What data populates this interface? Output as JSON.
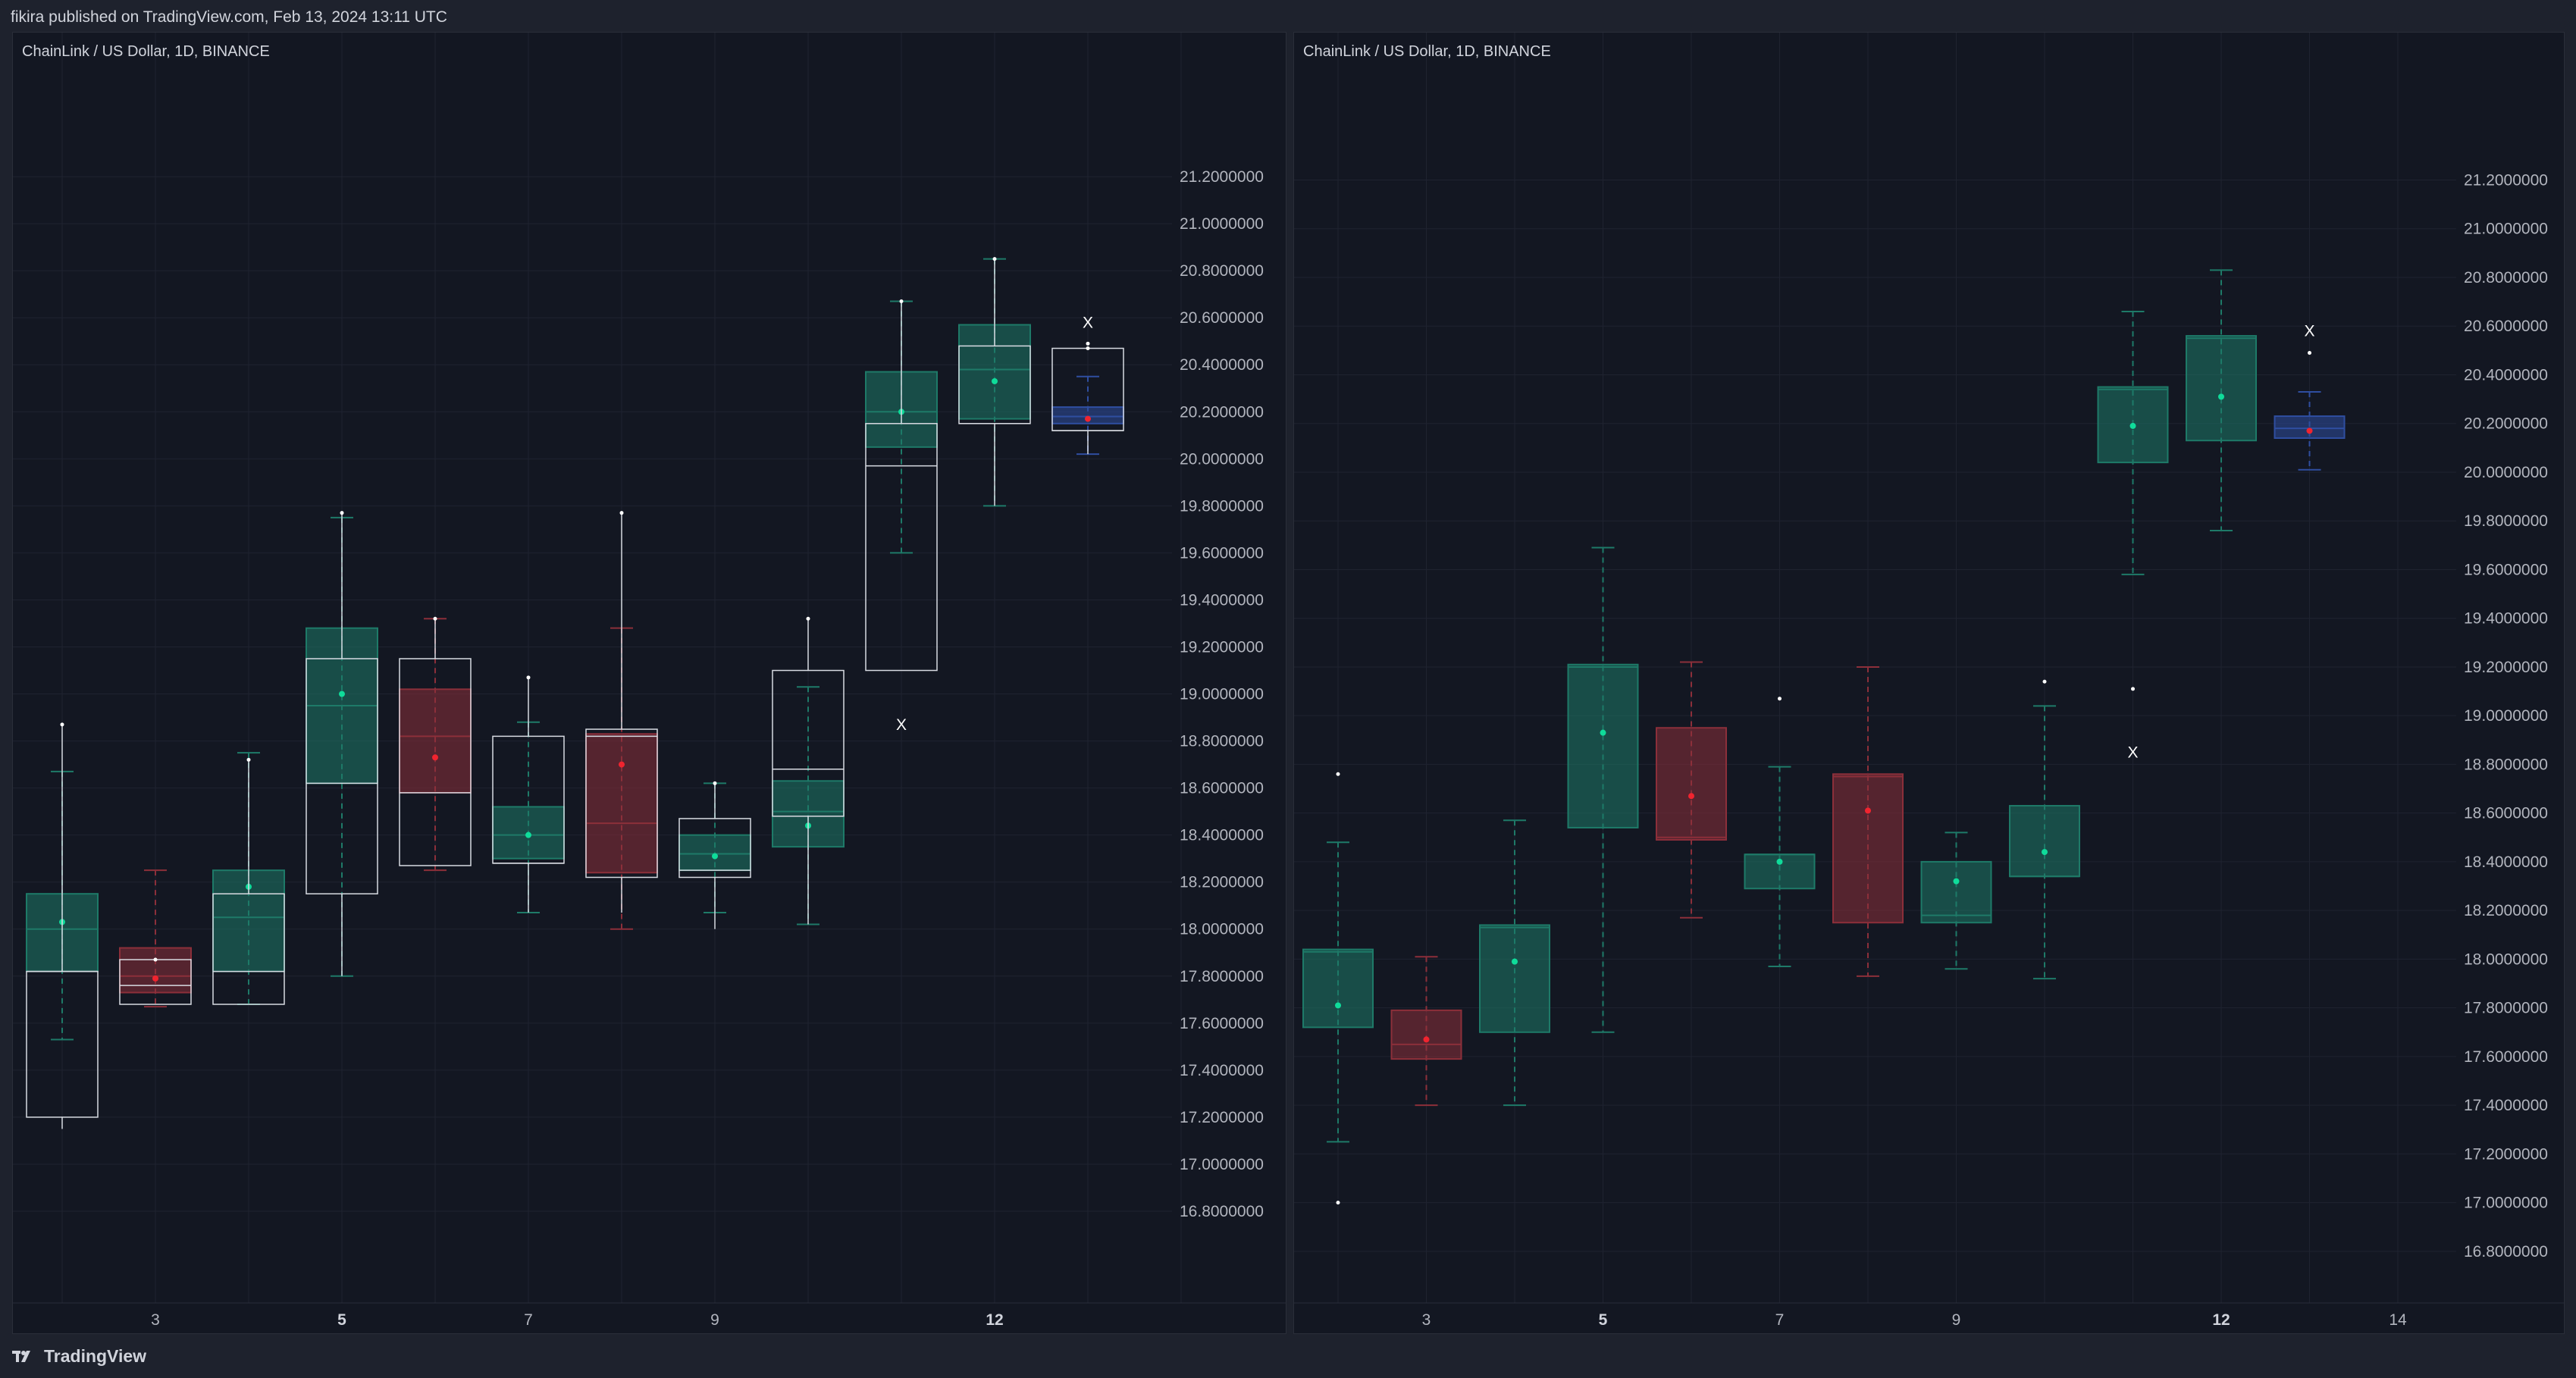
{
  "header": {
    "published": "fikira published on TradingView.com, Feb 13, 2024 13:11 UTC"
  },
  "footer": {
    "brand": "TradingView"
  },
  "colors": {
    "up": "#1e7a68",
    "up_mark": "#0fdc9a",
    "down": "#8c2f3a",
    "down_mark": "#f0242f",
    "neutral": "#2f4ea0",
    "white_box": "#d8dbe2",
    "grid": "#1f2330",
    "axis_text": "#b2b5be",
    "background": "#131722"
  },
  "panels": [
    {
      "symbol": "ChainLink / US Dollar, 1D, BINANCE"
    },
    {
      "symbol": "ChainLink / US Dollar, 1D, BINANCE"
    }
  ],
  "chart_data": [
    {
      "type": "box",
      "title": "ChainLink / US Dollar, 1D, BINANCE",
      "ylim": [
        16.7,
        21.6
      ],
      "y_ticks": [
        "21.2000000",
        "21.0000000",
        "20.8000000",
        "20.6000000",
        "20.4000000",
        "20.2000000",
        "20.0000000",
        "19.8000000",
        "19.6000000",
        "19.4000000",
        "19.2000000",
        "19.0000000",
        "18.8000000",
        "18.6000000",
        "18.4000000",
        "18.2000000",
        "18.0000000",
        "17.8000000",
        "17.6000000",
        "17.4000000",
        "17.2000000",
        "17.0000000",
        "16.8000000"
      ],
      "x_ticks": [
        "3",
        "5",
        "7",
        "9",
        "12"
      ],
      "x_tick_bold": [
        "5",
        "12"
      ],
      "candles": [
        {
          "day": 2,
          "q1": 17.82,
          "q3": 18.15,
          "med": 18.0,
          "mean": 18.03,
          "wlo": 17.53,
          "whi": 18.67,
          "color": "up"
        },
        {
          "day": 3,
          "q1": 17.73,
          "q3": 17.92,
          "med": 17.8,
          "mean": 17.79,
          "wlo": 17.67,
          "whi": 18.25,
          "color": "down"
        },
        {
          "day": 4,
          "q1": 17.82,
          "q3": 18.25,
          "med": 18.05,
          "mean": 18.18,
          "wlo": 17.68,
          "whi": 18.75,
          "color": "up"
        },
        {
          "day": 5,
          "q1": 18.62,
          "q3": 19.28,
          "med": 18.95,
          "mean": 19.0,
          "wlo": 17.8,
          "whi": 19.75,
          "color": "up"
        },
        {
          "day": 6,
          "q1": 18.58,
          "q3": 19.02,
          "med": 18.82,
          "mean": 18.73,
          "wlo": 18.25,
          "whi": 19.32,
          "color": "down"
        },
        {
          "day": 7,
          "q1": 18.3,
          "q3": 18.52,
          "med": 18.4,
          "mean": 18.4,
          "wlo": 18.07,
          "whi": 18.88,
          "color": "up"
        },
        {
          "day": 8,
          "q1": 18.24,
          "q3": 18.83,
          "med": 18.45,
          "mean": 18.7,
          "wlo": 18.0,
          "whi": 19.28,
          "color": "down"
        },
        {
          "day": 9,
          "q1": 18.25,
          "q3": 18.4,
          "med": 18.32,
          "mean": 18.31,
          "wlo": 18.07,
          "whi": 18.62,
          "color": "up"
        },
        {
          "day": 10,
          "q1": 18.35,
          "q3": 18.63,
          "med": 18.5,
          "mean": 18.44,
          "wlo": 18.02,
          "whi": 19.03,
          "color": "up"
        },
        {
          "day": 11,
          "q1": 20.05,
          "q3": 20.37,
          "med": 20.2,
          "mean": 20.2,
          "wlo": 19.6,
          "whi": 20.67,
          "color": "up"
        },
        {
          "day": 12,
          "q1": 20.17,
          "q3": 20.57,
          "med": 20.38,
          "mean": 20.33,
          "wlo": 19.8,
          "whi": 20.85,
          "color": "up"
        },
        {
          "day": 13,
          "q1": 20.15,
          "q3": 20.22,
          "med": 20.18,
          "mean": 20.17,
          "wlo": 20.02,
          "whi": 20.35,
          "color": "neutral"
        }
      ],
      "white_boxes": [
        {
          "day": 2,
          "q1": 17.2,
          "q3": 17.82,
          "med": 17.82,
          "wlo": 17.15,
          "whi": 18.87
        },
        {
          "day": 3,
          "q1": 17.68,
          "q3": 17.87,
          "med": 17.76,
          "wlo": 17.68,
          "whi": 17.87
        },
        {
          "day": 4,
          "q1": 17.68,
          "q3": 18.15,
          "med": 17.82,
          "wlo": 17.68,
          "whi": 18.72
        },
        {
          "day": 5,
          "q1": 18.15,
          "q3": 19.15,
          "med": 18.62,
          "wlo": 17.8,
          "whi": 19.77
        },
        {
          "day": 6,
          "q1": 18.27,
          "q3": 19.15,
          "med": 18.58,
          "wlo": 18.27,
          "whi": 19.32
        },
        {
          "day": 7,
          "q1": 18.28,
          "q3": 18.82,
          "med": 18.28,
          "wlo": 18.07,
          "whi": 19.07
        },
        {
          "day": 8,
          "q1": 18.22,
          "q3": 18.85,
          "med": 18.82,
          "wlo": 18.07,
          "whi": 19.77
        },
        {
          "day": 9,
          "q1": 18.22,
          "q3": 18.47,
          "med": 18.25,
          "wlo": 18.0,
          "whi": 18.62
        },
        {
          "day": 10,
          "q1": 18.48,
          "q3": 19.1,
          "med": 18.68,
          "wlo": 18.02,
          "whi": 19.32
        },
        {
          "day": 11,
          "q1": 19.1,
          "q3": 20.15,
          "med": 19.97,
          "wlo": 19.1,
          "whi": 20.67
        },
        {
          "day": 12,
          "q1": 20.15,
          "q3": 20.48,
          "med": 20.15,
          "wlo": 19.8,
          "whi": 20.85
        },
        {
          "day": 13,
          "q1": 20.12,
          "q3": 20.47,
          "med": 20.12,
          "wlo": 20.02,
          "whi": 20.47
        }
      ],
      "outliers": [
        {
          "day": 11,
          "value": 18.87,
          "mark": "X"
        },
        {
          "day": 13,
          "value": 20.58,
          "mark": "X"
        },
        {
          "day": 13,
          "value": 20.49,
          "mark": "dot"
        }
      ]
    },
    {
      "type": "box",
      "title": "ChainLink / US Dollar, 1D, BINANCE",
      "ylim": [
        16.7,
        21.6
      ],
      "y_ticks": [
        "21.2000000",
        "21.0000000",
        "20.8000000",
        "20.6000000",
        "20.4000000",
        "20.2000000",
        "20.0000000",
        "19.8000000",
        "19.6000000",
        "19.4000000",
        "19.2000000",
        "19.0000000",
        "18.8000000",
        "18.6000000",
        "18.4000000",
        "18.2000000",
        "18.0000000",
        "17.8000000",
        "17.6000000",
        "17.4000000",
        "17.2000000",
        "17.0000000",
        "16.8000000"
      ],
      "x_ticks": [
        "3",
        "5",
        "7",
        "9",
        "12",
        "14"
      ],
      "x_tick_bold": [
        "5",
        "12"
      ],
      "candles": [
        {
          "day": 2,
          "q1": 17.72,
          "q3": 18.04,
          "med": 18.03,
          "mean": 17.81,
          "wlo": 17.25,
          "whi": 18.48,
          "color": "up"
        },
        {
          "day": 3,
          "q1": 17.59,
          "q3": 17.79,
          "med": 17.65,
          "mean": 17.67,
          "wlo": 17.4,
          "whi": 18.01,
          "color": "down"
        },
        {
          "day": 4,
          "q1": 17.7,
          "q3": 18.14,
          "med": 18.13,
          "mean": 17.99,
          "wlo": 17.4,
          "whi": 18.57,
          "color": "up"
        },
        {
          "day": 5,
          "q1": 18.54,
          "q3": 19.21,
          "med": 19.2,
          "mean": 18.93,
          "wlo": 17.7,
          "whi": 19.69,
          "color": "up"
        },
        {
          "day": 6,
          "q1": 18.49,
          "q3": 18.95,
          "med": 18.5,
          "mean": 18.67,
          "wlo": 18.17,
          "whi": 19.22,
          "color": "down"
        },
        {
          "day": 7,
          "q1": 18.29,
          "q3": 18.43,
          "med": 18.43,
          "mean": 18.4,
          "wlo": 17.97,
          "whi": 18.79,
          "color": "up"
        },
        {
          "day": 8,
          "q1": 18.15,
          "q3": 18.76,
          "med": 18.75,
          "mean": 18.61,
          "wlo": 17.93,
          "whi": 19.2,
          "color": "down"
        },
        {
          "day": 9,
          "q1": 18.15,
          "q3": 18.4,
          "med": 18.18,
          "mean": 18.32,
          "wlo": 17.96,
          "whi": 18.52,
          "color": "up"
        },
        {
          "day": 10,
          "q1": 18.34,
          "q3": 18.63,
          "med": 18.34,
          "mean": 18.44,
          "wlo": 17.92,
          "whi": 19.04,
          "color": "up"
        },
        {
          "day": 11,
          "q1": 20.04,
          "q3": 20.35,
          "med": 20.34,
          "mean": 20.19,
          "wlo": 19.58,
          "whi": 20.66,
          "color": "up"
        },
        {
          "day": 12,
          "q1": 20.13,
          "q3": 20.56,
          "med": 20.55,
          "mean": 20.31,
          "wlo": 19.76,
          "whi": 20.83,
          "color": "up"
        },
        {
          "day": 13,
          "q1": 20.14,
          "q3": 20.23,
          "med": 20.18,
          "mean": 20.17,
          "wlo": 20.01,
          "whi": 20.33,
          "color": "neutral"
        }
      ],
      "outliers": [
        {
          "day": 2,
          "value": 18.76,
          "mark": "dot"
        },
        {
          "day": 2,
          "value": 17.0,
          "mark": "dot"
        },
        {
          "day": 7,
          "value": 19.07,
          "mark": "dot"
        },
        {
          "day": 10,
          "value": 19.14,
          "mark": "dot"
        },
        {
          "day": 11,
          "value": 19.11,
          "mark": "dot"
        },
        {
          "day": 11,
          "value": 18.85,
          "mark": "X"
        },
        {
          "day": 13,
          "value": 20.58,
          "mark": "X"
        },
        {
          "day": 13,
          "value": 20.49,
          "mark": "dot"
        }
      ]
    }
  ]
}
